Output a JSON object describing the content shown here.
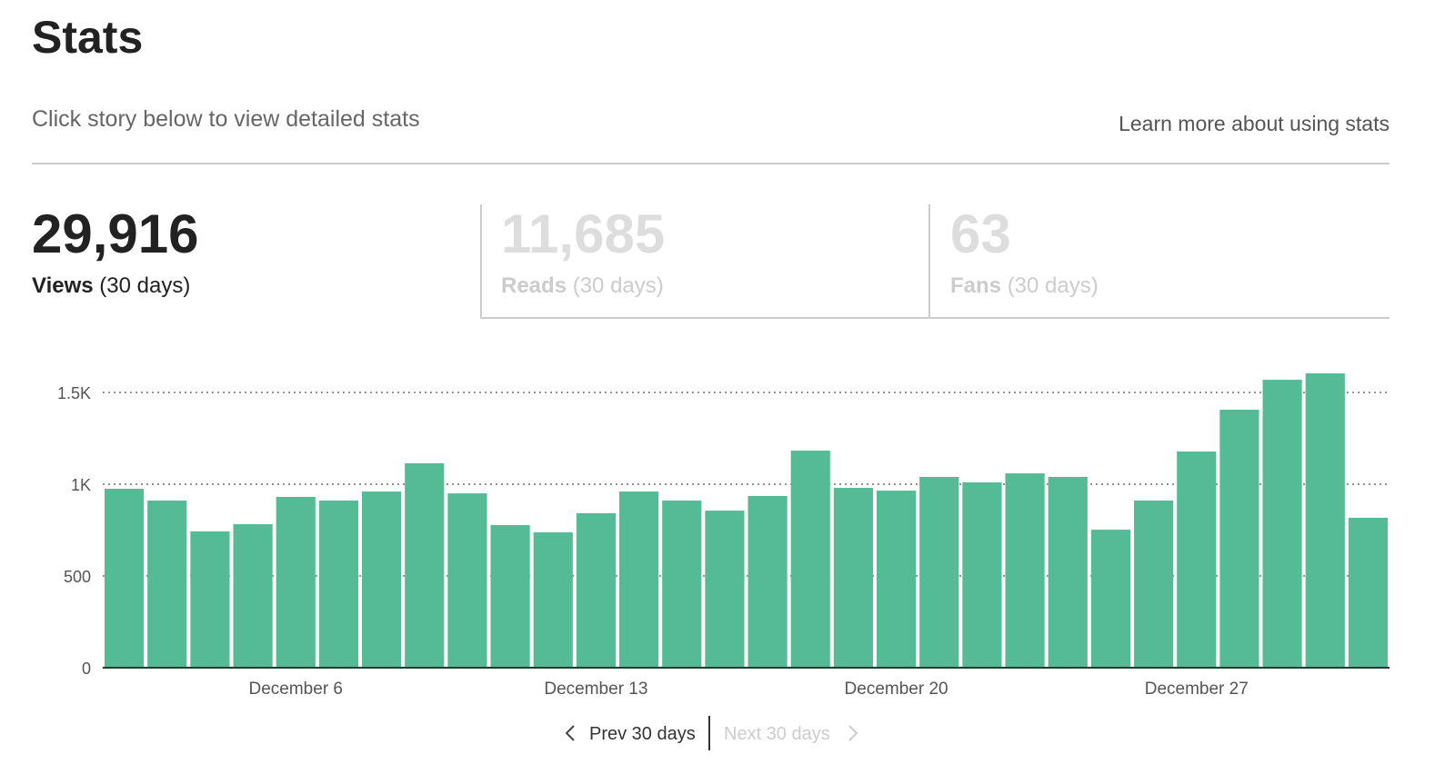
{
  "header": {
    "title": "Stats",
    "subtitle": "Click story below to view detailed stats",
    "link": "Learn more about using stats"
  },
  "stats": [
    {
      "value": "29,916",
      "label": "Views",
      "period": "(30 days)"
    },
    {
      "value": "11,685",
      "label": "Reads",
      "period": "(30 days)"
    },
    {
      "value": "63",
      "label": "Fans",
      "period": "(30 days)"
    }
  ],
  "chart_data": {
    "type": "bar",
    "categories": [
      null,
      null,
      null,
      null,
      "December 6",
      null,
      null,
      null,
      null,
      null,
      null,
      "December 13",
      null,
      null,
      null,
      null,
      null,
      null,
      "December 20",
      null,
      null,
      null,
      null,
      null,
      null,
      "December 27",
      null,
      null,
      null,
      null
    ],
    "values": [
      975,
      911,
      743,
      782,
      931,
      911,
      960,
      1114,
      950,
      777,
      738,
      842,
      960,
      911,
      856,
      936,
      1183,
      980,
      965,
      1040,
      1010,
      1059,
      1040,
      752,
      911,
      1178,
      1406,
      1569,
      1604,
      817
    ],
    "color": "#55ba96",
    "ylim": [
      0,
      1650
    ],
    "yticks": [
      0,
      500,
      {
        "value": 1000,
        "label": "1K"
      },
      {
        "value": 1500,
        "label": "1.5K"
      }
    ],
    "grid": true
  },
  "pager": {
    "prev": "Prev 30 days",
    "next": "Next 30 days"
  }
}
